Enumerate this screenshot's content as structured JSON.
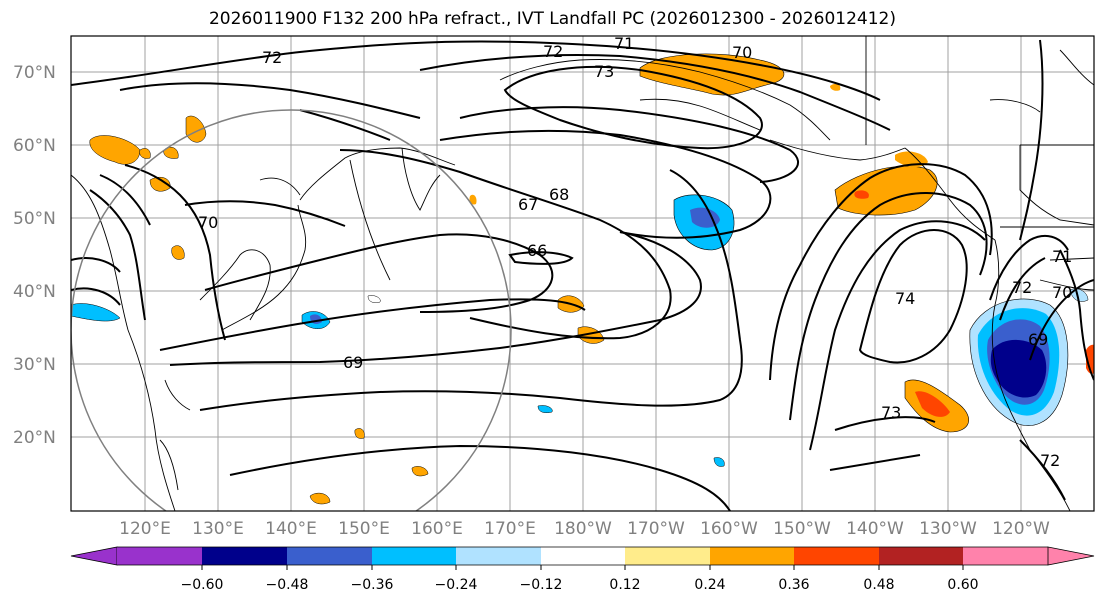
{
  "title": "2026011900 F132 200 hPa refract., IVT Landfall PC (2026012300 - 2026012412)",
  "map": {
    "lat_labels": [
      "70°N",
      "60°N",
      "50°N",
      "40°N",
      "30°N",
      "20°N"
    ],
    "lon_labels": [
      "120°E",
      "130°E",
      "140°E",
      "150°E",
      "160°E",
      "170°E",
      "180°W",
      "170°W",
      "160°W",
      "150°W",
      "140°W",
      "130°W",
      "120°W"
    ],
    "contour_labels": [
      "72",
      "72",
      "71",
      "70",
      "73",
      "67",
      "68",
      "66",
      "69",
      "70",
      "74",
      "73",
      "72",
      "70",
      "69",
      "71",
      "72"
    ],
    "shading_colors": [
      "#9932cc",
      "#00008b",
      "#3a5fcd",
      "#00bfff",
      "#b0e2ff",
      "#ffffff",
      "#ffec8b",
      "#ffa500",
      "#ff4500",
      "#b22222",
      "#ff82ab"
    ]
  },
  "colorbar": {
    "ticks": [
      "−0.60",
      "−0.48",
      "−0.36",
      "−0.24",
      "−0.12",
      "0.12",
      "0.24",
      "0.36",
      "0.48",
      "0.60"
    ],
    "levels": [
      -0.6,
      -0.48,
      -0.36,
      -0.24,
      -0.12,
      0.12,
      0.24,
      0.36,
      0.48,
      0.6
    ]
  }
}
